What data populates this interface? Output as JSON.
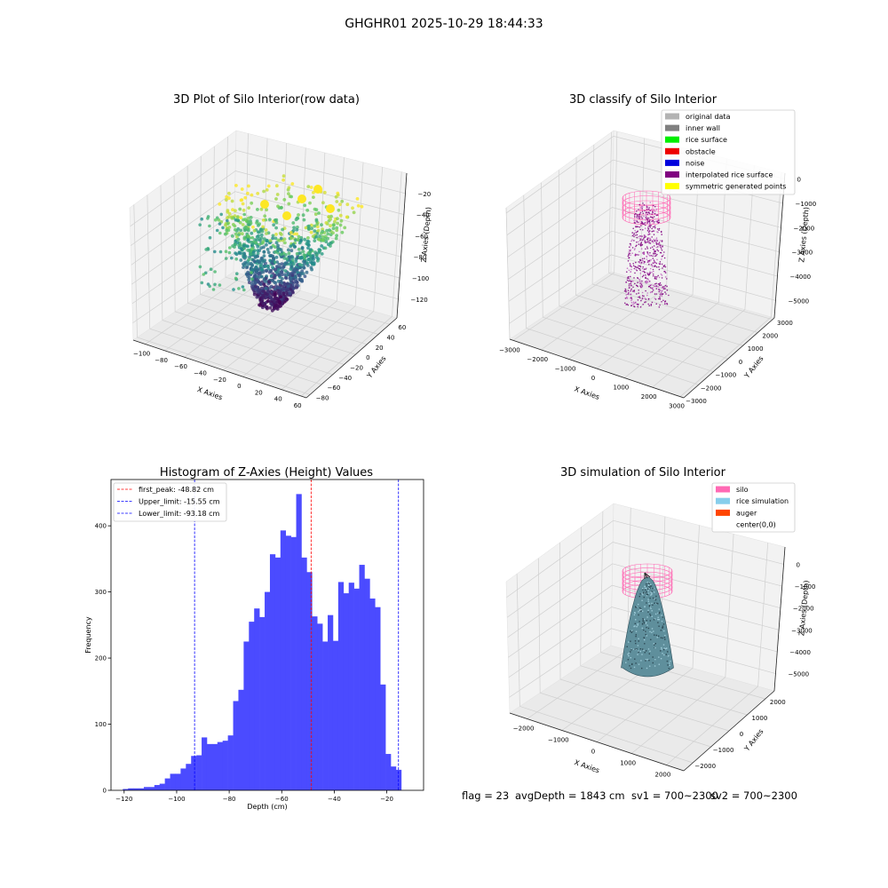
{
  "figure_title": "GHGHR01 2025-10-29 18:44:33",
  "footer": {
    "flag": "flag = 23",
    "avg_depth": "avgDepth = 1843 cm",
    "sv1": "sv1 = 700~2300",
    "sv2": "sv2 = 700~2300"
  },
  "chart_data": [
    {
      "type": "scatter",
      "subtype": "3d-scatter",
      "title": "3D Plot of Silo Interior(row data)",
      "xlabel": "X Axies",
      "ylabel": "Y Axies",
      "zlabel": "Z Axies (Depth)",
      "x_ticks": [
        "−100",
        "−80",
        "−60",
        "−40",
        "−20",
        "0",
        "20",
        "40",
        "60"
      ],
      "y_ticks": [
        "−80",
        "−60",
        "−40",
        "−20",
        "0",
        "20",
        "40",
        "60"
      ],
      "z_ticks": [
        "−20",
        "−40",
        "−60",
        "−80",
        "−100",
        "−120"
      ],
      "xlim": [
        -110,
        60
      ],
      "ylim": [
        -90,
        65
      ],
      "zlim": [
        -130,
        -10
      ],
      "colormap": [
        "#440154",
        "#3b528b",
        "#21918c",
        "#5ec962",
        "#fde725"
      ],
      "grid": true
    },
    {
      "type": "scatter",
      "subtype": "3d-scatter",
      "title": "3D classify of Silo Interior",
      "xlabel": "X Axies",
      "ylabel": "Y Axies",
      "zlabel": "Z Axies (Depth)",
      "x_ticks": [
        "−3000",
        "−2000",
        "−1000",
        "0",
        "1000",
        "2000",
        "3000"
      ],
      "y_ticks": [
        "−3000",
        "−2000",
        "−1000",
        "0",
        "1000",
        "2000",
        "3000"
      ],
      "z_ticks": [
        "0",
        "−1000",
        "−2000",
        "−3000",
        "−4000",
        "−5000"
      ],
      "xlim": [
        -3000,
        3000
      ],
      "ylim": [
        -3000,
        3000
      ],
      "zlim": [
        -5500,
        0
      ],
      "legend_position": "top-right",
      "legend": [
        {
          "label": "original data",
          "color": "#b3b3b3"
        },
        {
          "label": "inner wall",
          "color": "#808080"
        },
        {
          "label": "rice surface",
          "color": "#00ee00"
        },
        {
          "label": "obstacle",
          "color": "#ee0000"
        },
        {
          "label": "noise",
          "color": "#0000dd"
        },
        {
          "label": "interpolated rice surface",
          "color": "#800080"
        },
        {
          "label": "symmetric generated points",
          "color": "#ffff00"
        }
      ],
      "grid": true
    },
    {
      "type": "bar",
      "subtype": "histogram",
      "title": "Histogram of Z-Axies (Height) Values",
      "xlabel": "Depth (cm)",
      "ylabel": "Frequency",
      "xlim": [
        -125,
        -6
      ],
      "ylim": [
        0,
        470
      ],
      "x_ticks": [
        {
          "value": -120,
          "label": "−120"
        },
        {
          "value": -100,
          "label": "−100"
        },
        {
          "value": -80,
          "label": "−80"
        },
        {
          "value": -60,
          "label": "−60"
        },
        {
          "value": -40,
          "label": "−40"
        },
        {
          "value": -20,
          "label": "−20"
        }
      ],
      "y_ticks": [
        {
          "value": 0,
          "label": "0"
        },
        {
          "value": 100,
          "label": "100"
        },
        {
          "value": 200,
          "label": "200"
        },
        {
          "value": 300,
          "label": "300"
        },
        {
          "value": 400,
          "label": "400"
        }
      ],
      "bin_start": -120.5,
      "bin_width": 2,
      "bar_color": "#4b4bff",
      "values": [
        2,
        3,
        3,
        3,
        5,
        5,
        8,
        10,
        18,
        25,
        25,
        33,
        40,
        52,
        53,
        80,
        70,
        70,
        73,
        75,
        83,
        135,
        152,
        225,
        255,
        275,
        262,
        300,
        357,
        352,
        393,
        385,
        383,
        448,
        352,
        330,
        263,
        252,
        225,
        265,
        226,
        315,
        298,
        314,
        305,
        341,
        320,
        290,
        277,
        160,
        55,
        36,
        31
      ],
      "reference_lines": [
        {
          "value": -48.82,
          "color": "#ff0000",
          "label": "first_peak: -48.82 cm"
        },
        {
          "value": -15.55,
          "color": "#0000ff",
          "label": "Upper_limit: -15.55 cm"
        },
        {
          "value": -93.18,
          "color": "#0000ff",
          "label": "Lower_limit: -93.18 cm"
        }
      ],
      "legend_position": "top-left",
      "grid": false
    },
    {
      "type": "area",
      "subtype": "3d-surface",
      "title": "3D simulation of Silo Interior",
      "xlabel": "X Axies",
      "ylabel": "Y Axies",
      "zlabel": "Z Axies (Depth)",
      "x_ticks": [
        "−2000",
        "−1000",
        "0",
        "1000",
        "2000"
      ],
      "y_ticks": [
        "−2000",
        "−1000",
        "0",
        "1000",
        "2000"
      ],
      "z_ticks": [
        "0",
        "−1000",
        "−2000",
        "−3000",
        "−4000",
        "−5000"
      ],
      "xlim": [
        -2500,
        2500
      ],
      "ylim": [
        -2500,
        2500
      ],
      "zlim": [
        -5500,
        0
      ],
      "legend_position": "top-right",
      "legend": [
        {
          "label": "silo",
          "color": "#ff69b4"
        },
        {
          "label": "rice simulation",
          "color": "#87ceeb"
        },
        {
          "label": "auger",
          "color": "#ff4500"
        },
        {
          "label": "center(0,0)",
          "color": "#ffffff"
        }
      ],
      "grid": true
    }
  ]
}
